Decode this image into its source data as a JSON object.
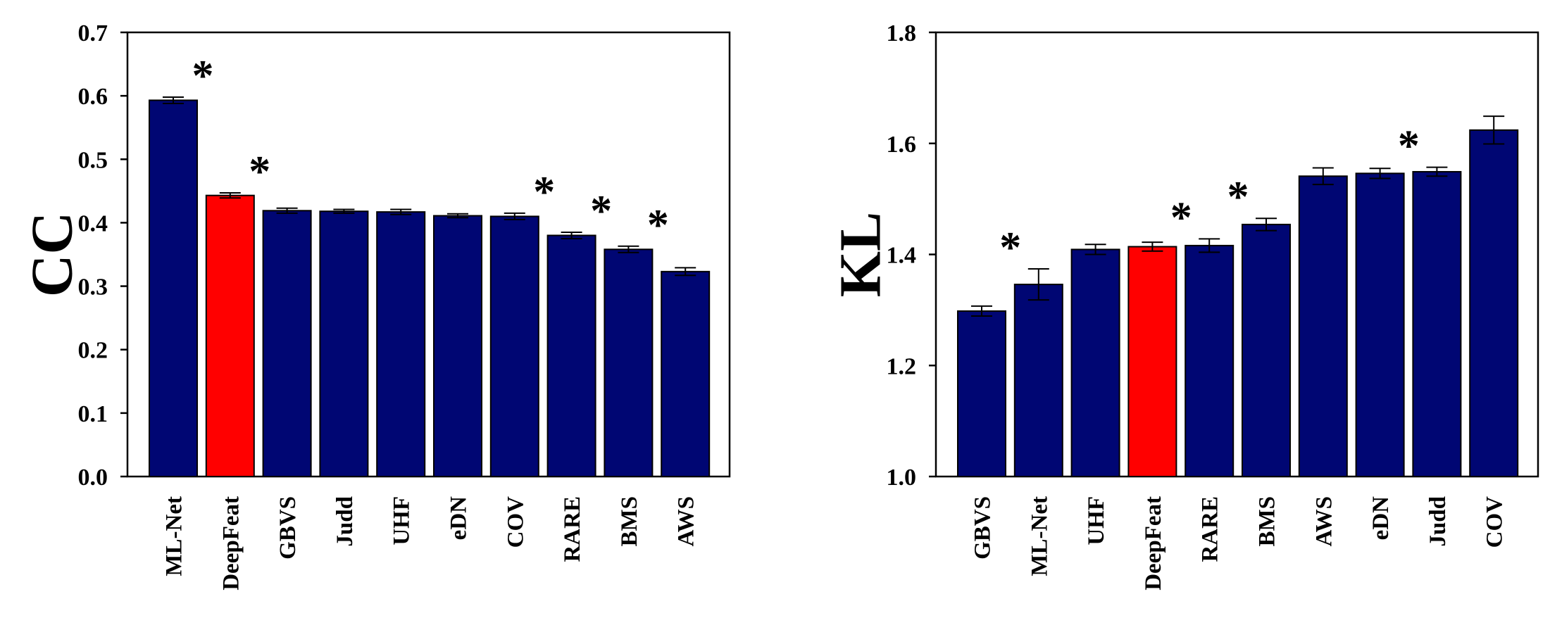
{
  "colors": {
    "bar": "#000673",
    "highlight": "#ff0000",
    "axis": "#000000",
    "background": "#ffffff"
  },
  "chart_data": [
    {
      "type": "bar",
      "ylabel": "CC",
      "ylim": [
        0.0,
        0.7
      ],
      "yticks": [
        "0.0",
        "0.1",
        "0.2",
        "0.3",
        "0.4",
        "0.5",
        "0.6",
        "0.7"
      ],
      "categories": [
        "ML-Net",
        "DeepFeat",
        "GBVS",
        "Judd",
        "UHF",
        "eDN",
        "COV",
        "RARE",
        "BMS",
        "AWS"
      ],
      "values": [
        0.593,
        0.443,
        0.419,
        0.418,
        0.417,
        0.411,
        0.41,
        0.38,
        0.358,
        0.323
      ],
      "errors": [
        0.005,
        0.004,
        0.004,
        0.003,
        0.004,
        0.003,
        0.005,
        0.005,
        0.005,
        0.006
      ],
      "highlight": "DeepFeat",
      "significance": [
        "*",
        "*",
        "",
        "",
        "",
        "",
        "*",
        "*",
        "*",
        ""
      ],
      "grid": false
    },
    {
      "type": "bar",
      "ylabel": "KL",
      "ylim": [
        1.0,
        1.8
      ],
      "yticks": [
        "1.0",
        "1.2",
        "1.4",
        "1.6",
        "1.8"
      ],
      "categories": [
        "GBVS",
        "ML-Net",
        "UHF",
        "DeepFeat",
        "RARE",
        "BMS",
        "AWS",
        "eDN",
        "Judd",
        "COV"
      ],
      "values": [
        1.298,
        1.346,
        1.409,
        1.414,
        1.416,
        1.454,
        1.541,
        1.546,
        1.549,
        1.624
      ],
      "errors": [
        0.009,
        0.028,
        0.009,
        0.008,
        0.012,
        0.011,
        0.015,
        0.009,
        0.008,
        0.025
      ],
      "highlight": "DeepFeat",
      "significance": [
        "",
        "*",
        "",
        "",
        "*",
        "*",
        "",
        "",
        "*",
        ""
      ],
      "grid": false
    }
  ]
}
